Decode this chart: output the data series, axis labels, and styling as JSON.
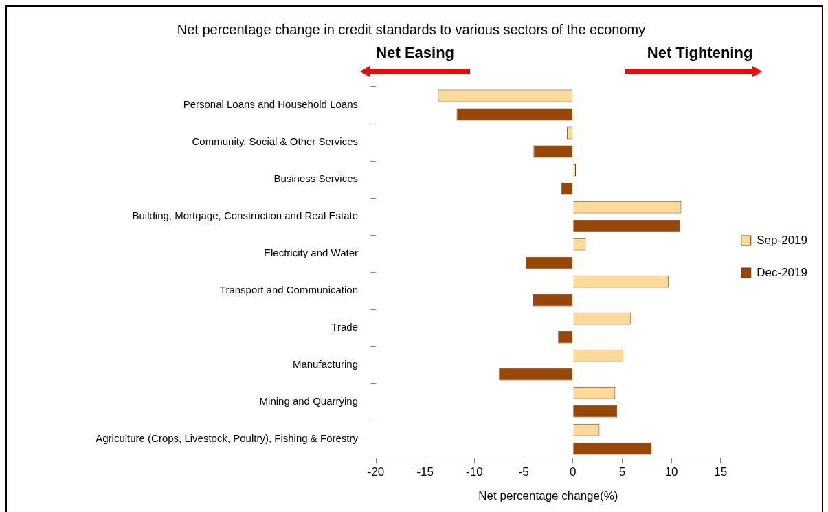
{
  "chart_data": {
    "type": "bar",
    "orientation": "horizontal",
    "title": "Net percentage change in credit standards to various sectors of the economy",
    "xlabel": "Net percentage change(%)",
    "categories": [
      "Personal Loans and Household Loans",
      "Community, Social & Other Services",
      "Business Services",
      "Building, Mortgage, Construction and Real Estate",
      "Electricity and Water",
      "Transport and Communication",
      "Trade",
      "Manufacturing",
      "Mining and Quarrying",
      "Agriculture (Crops, Livestock, Poultry), Fishing & Forestry"
    ],
    "series": [
      {
        "name": "Sep-2019",
        "color": "#ffdb99",
        "values": [
          -13.7,
          -0.6,
          0.3,
          11.0,
          1.3,
          9.7,
          5.9,
          5.1,
          4.3,
          2.7
        ]
      },
      {
        "name": "Dec-2019",
        "color": "#994709",
        "values": [
          -11.8,
          -4.0,
          -1.2,
          10.9,
          -4.8,
          -4.1,
          -1.5,
          -7.5,
          4.5,
          8.0
        ]
      }
    ],
    "xlim": [
      -20,
      15
    ],
    "xticks": [
      -20,
      -15,
      -10,
      -5,
      0,
      5,
      10,
      15
    ],
    "grid": false,
    "legend": "right",
    "annotations": [
      "Net Easing",
      "Net Tightening"
    ]
  }
}
